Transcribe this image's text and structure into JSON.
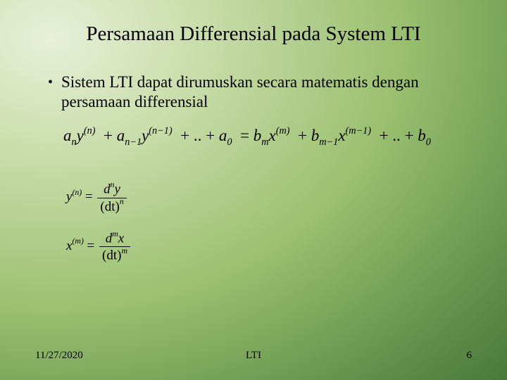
{
  "slide": {
    "title": "Persamaan Differensial pada System LTI",
    "bullet_text": "Sistem LTI dapat dirumuskan secara matematis dengan persamaan differensial",
    "title_fontsize": 29,
    "body_fontsize": 23,
    "sub_eq_fontsize": 19,
    "text_color": "#000000",
    "background_gradient": {
      "type": "radial",
      "center": "10% 10%",
      "stops": [
        "#e8f0d8",
        "#c8dca8",
        "#9ac070",
        "#6a9850",
        "#4a7838"
      ]
    }
  },
  "equations": {
    "main": {
      "terms": [
        {
          "coef_var": "a",
          "coef_sub": "n",
          "base": "y",
          "exp": "(n)"
        },
        {
          "op": "+",
          "coef_var": "a",
          "coef_sub": "n−1",
          "base": "y",
          "exp": "(n−1)"
        },
        {
          "op": "+ .. +",
          "coef_var": "a",
          "coef_sub": "0"
        },
        {
          "op": "=",
          "coef_var": "b",
          "coef_sub": "m",
          "base": "x",
          "exp": "(m)"
        },
        {
          "op": "+",
          "coef_var": "b",
          "coef_sub": "m−1",
          "base": "x",
          "exp": "(m−1)"
        },
        {
          "op": "+ .. +",
          "coef_var": "b",
          "coef_sub": "0"
        }
      ]
    },
    "def_y": {
      "lhs_var": "y",
      "lhs_exp": "(n)",
      "num_top_var": "d",
      "num_top_exp": "n",
      "num_var": "y",
      "den_left": "(dt)",
      "den_exp": "n"
    },
    "def_x": {
      "lhs_var": "x",
      "lhs_exp": "(m)",
      "num_top_var": "d",
      "num_top_exp": "m",
      "num_var": "x",
      "den_left": "(dt)",
      "den_exp": "m"
    }
  },
  "footer": {
    "date": "11/27/2020",
    "center": "LTI",
    "page": "6",
    "fontsize": 15
  }
}
